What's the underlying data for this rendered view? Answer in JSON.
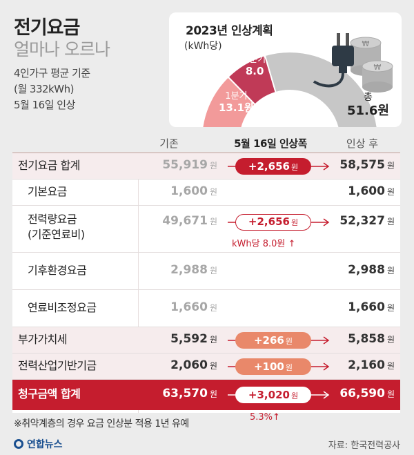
{
  "header": {
    "title": "전기요금",
    "subtitle": "얼마나 오르나",
    "notes": [
      "4인가구 평균 기준",
      "(월 332kWh)",
      "5월 16일 인상"
    ]
  },
  "plan": {
    "title": "2023년 인상계획",
    "unit": "(kWh당)",
    "segments": [
      {
        "label": "1분기",
        "value": "13.1원",
        "amount": 13.1,
        "color": "#f29a9a"
      },
      {
        "label": "2분기",
        "value": "8.0",
        "amount": 8.0,
        "color": "#c03a57"
      }
    ],
    "total_label": "총",
    "total_value": "51.6원",
    "total_amount": 51.6,
    "remaining_color": "#c7c7c7",
    "icons": [
      "power-plug-icon",
      "won-coin-stack-icon"
    ]
  },
  "table": {
    "headers": {
      "base": "기존",
      "increase": "5월 16일 인상폭",
      "after": "인상 후"
    },
    "unit": "원",
    "rows": [
      {
        "label": "전기요금 합계",
        "base": "55,919",
        "increase": "+2,656",
        "after": "58,575",
        "style": "shade",
        "pill": "red"
      },
      {
        "label": "기본요금",
        "base": "1,600",
        "increase": "",
        "after": "1,600",
        "style": "plain",
        "pill": ""
      },
      {
        "label": "전력량요금",
        "label2": "(기준연료비)",
        "base": "49,671",
        "increase": "+2,656",
        "after": "52,327",
        "style": "plain",
        "pill": "white",
        "note": "kWh당 8.0원 ↑"
      },
      {
        "label": "기후환경요금",
        "base": "2,988",
        "increase": "",
        "after": "2,988",
        "style": "plain",
        "pill": ""
      },
      {
        "label": "연료비조정요금",
        "base": "1,660",
        "increase": "",
        "after": "1,660",
        "style": "plain",
        "pill": ""
      },
      {
        "label": "부가가치세",
        "base": "5,592",
        "increase": "+266",
        "after": "5,858",
        "style": "shade",
        "pill": "orange"
      },
      {
        "label": "전력산업기반기금",
        "base": "2,060",
        "increase": "+100",
        "after": "2,160",
        "style": "shade",
        "pill": "orange"
      },
      {
        "label": "청구금액 합계",
        "base": "63,570",
        "increase": "+3,020",
        "after": "66,590",
        "style": "total",
        "pill": "white"
      }
    ],
    "total_pct": "5.3%↑"
  },
  "footer": {
    "footnote": "※취약계층의 경우 요금 인상분 적용 1년 유예",
    "logo": "연합뉴스",
    "source": "자료: 한국전력공사"
  },
  "colors": {
    "accent": "#c51d2e",
    "orange": "#e9886a",
    "bg": "#ececec"
  }
}
